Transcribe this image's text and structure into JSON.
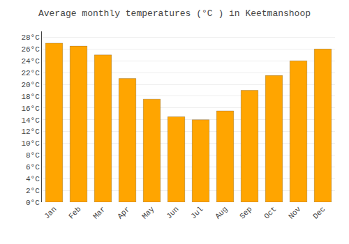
{
  "chart_data": {
    "type": "bar",
    "title": "Average monthly temperatures (°C ) in Keetmanshoop",
    "categories": [
      "Jan",
      "Feb",
      "Mar",
      "Apr",
      "May",
      "Jun",
      "Jul",
      "Aug",
      "Sep",
      "Oct",
      "Nov",
      "Dec"
    ],
    "values": [
      27.0,
      26.5,
      25.0,
      21.0,
      17.5,
      14.5,
      14.0,
      15.5,
      19.0,
      21.5,
      24.0,
      26.0
    ],
    "color": "#FFA500",
    "ylim": [
      0,
      29
    ],
    "yticks": [
      {
        "value": 0,
        "label": "0°C"
      },
      {
        "value": 2,
        "label": "2°C"
      },
      {
        "value": 4,
        "label": "4°C"
      },
      {
        "value": 6,
        "label": "6°C"
      },
      {
        "value": 8,
        "label": "8°C"
      },
      {
        "value": 10,
        "label": "10°C"
      },
      {
        "value": 12,
        "label": "12°C"
      },
      {
        "value": 14,
        "label": "14°C"
      },
      {
        "value": 16,
        "label": "16°C"
      },
      {
        "value": 18,
        "label": "18°C"
      },
      {
        "value": 20,
        "label": "20°C"
      },
      {
        "value": 22,
        "label": "22°C"
      },
      {
        "value": 24,
        "label": "24°C"
      },
      {
        "value": 26,
        "label": "26°C"
      },
      {
        "value": 28,
        "label": "28°C"
      }
    ],
    "grid": true
  }
}
